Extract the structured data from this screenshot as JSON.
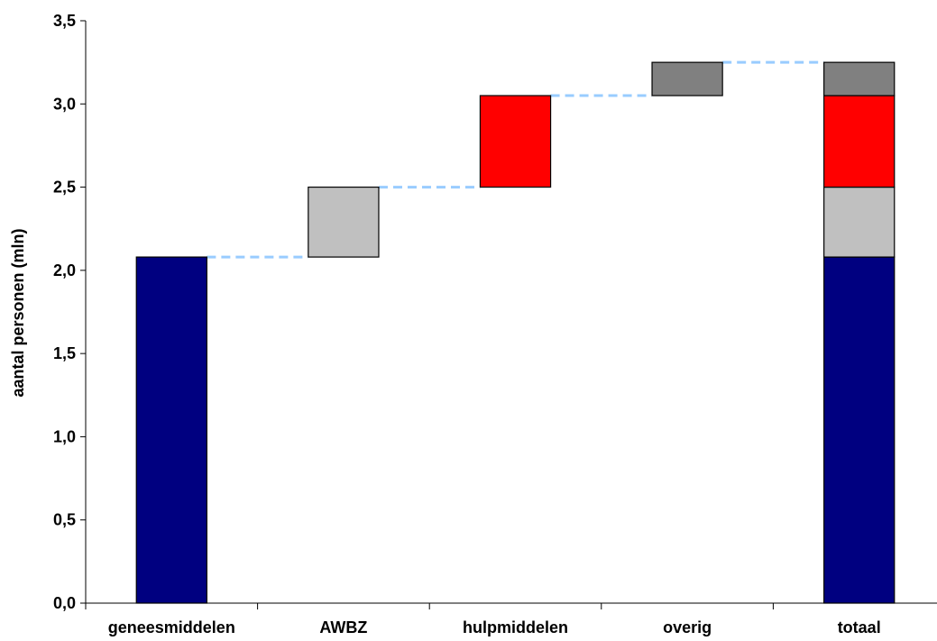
{
  "chart_data": {
    "type": "bar",
    "subtype": "waterfall",
    "ylabel": "aantal personen (mln)",
    "xlabel": "",
    "ylim": [
      0,
      3.5
    ],
    "yticks": [
      "0,0",
      "0,5",
      "1,0",
      "1,5",
      "2,0",
      "2,5",
      "3,0",
      "3,5"
    ],
    "categories": [
      "geneesmiddelen",
      "AWBZ",
      "hulpmiddelen",
      "overig",
      "totaal"
    ],
    "series": [
      {
        "name": "geneesmiddelen",
        "color": "#000080",
        "values": [
          2.08,
          0,
          0,
          0,
          2.08
        ]
      },
      {
        "name": "AWBZ",
        "color": "#c0c0c0",
        "values": [
          0,
          0.42,
          0,
          0,
          0.42
        ]
      },
      {
        "name": "hulpmiddelen",
        "color": "#ff0000",
        "values": [
          0,
          0,
          0.55,
          0,
          0.55
        ]
      },
      {
        "name": "overig",
        "color": "#808080",
        "values": [
          0,
          0,
          0,
          0.2,
          0.2
        ]
      }
    ],
    "connector_color": "#99ccff",
    "grid": false,
    "legend": "none"
  }
}
